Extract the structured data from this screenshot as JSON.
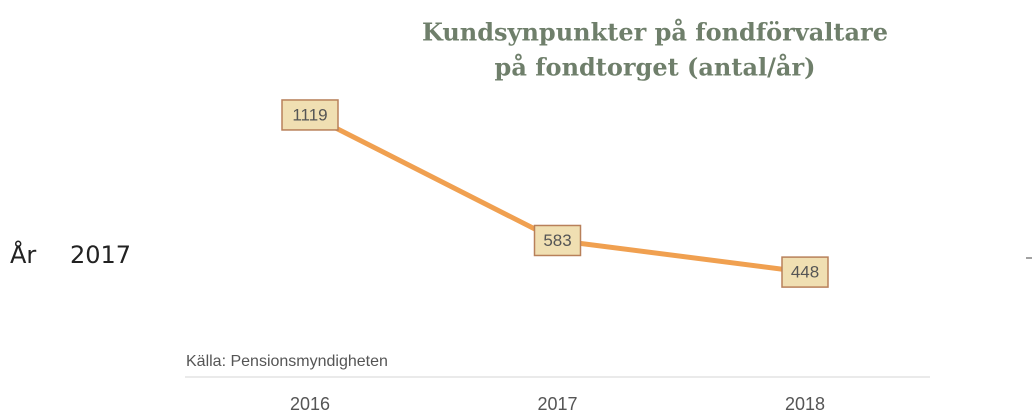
{
  "filter": {
    "label": "År",
    "value": "2017"
  },
  "chart_data": {
    "type": "line",
    "title": [
      "Kundsynpunkter på fondförvaltare",
      "på fondtorget (antal/år)"
    ],
    "source": "Källa: Pensionsmyndigheten",
    "categories": [
      "2016",
      "2017",
      "2018"
    ],
    "values": [
      1119,
      583,
      448
    ],
    "color": "#f0a050",
    "label_fill": "#f0dfb2",
    "label_stroke": "#b8805a",
    "ylim": [
      0,
      1200
    ]
  }
}
